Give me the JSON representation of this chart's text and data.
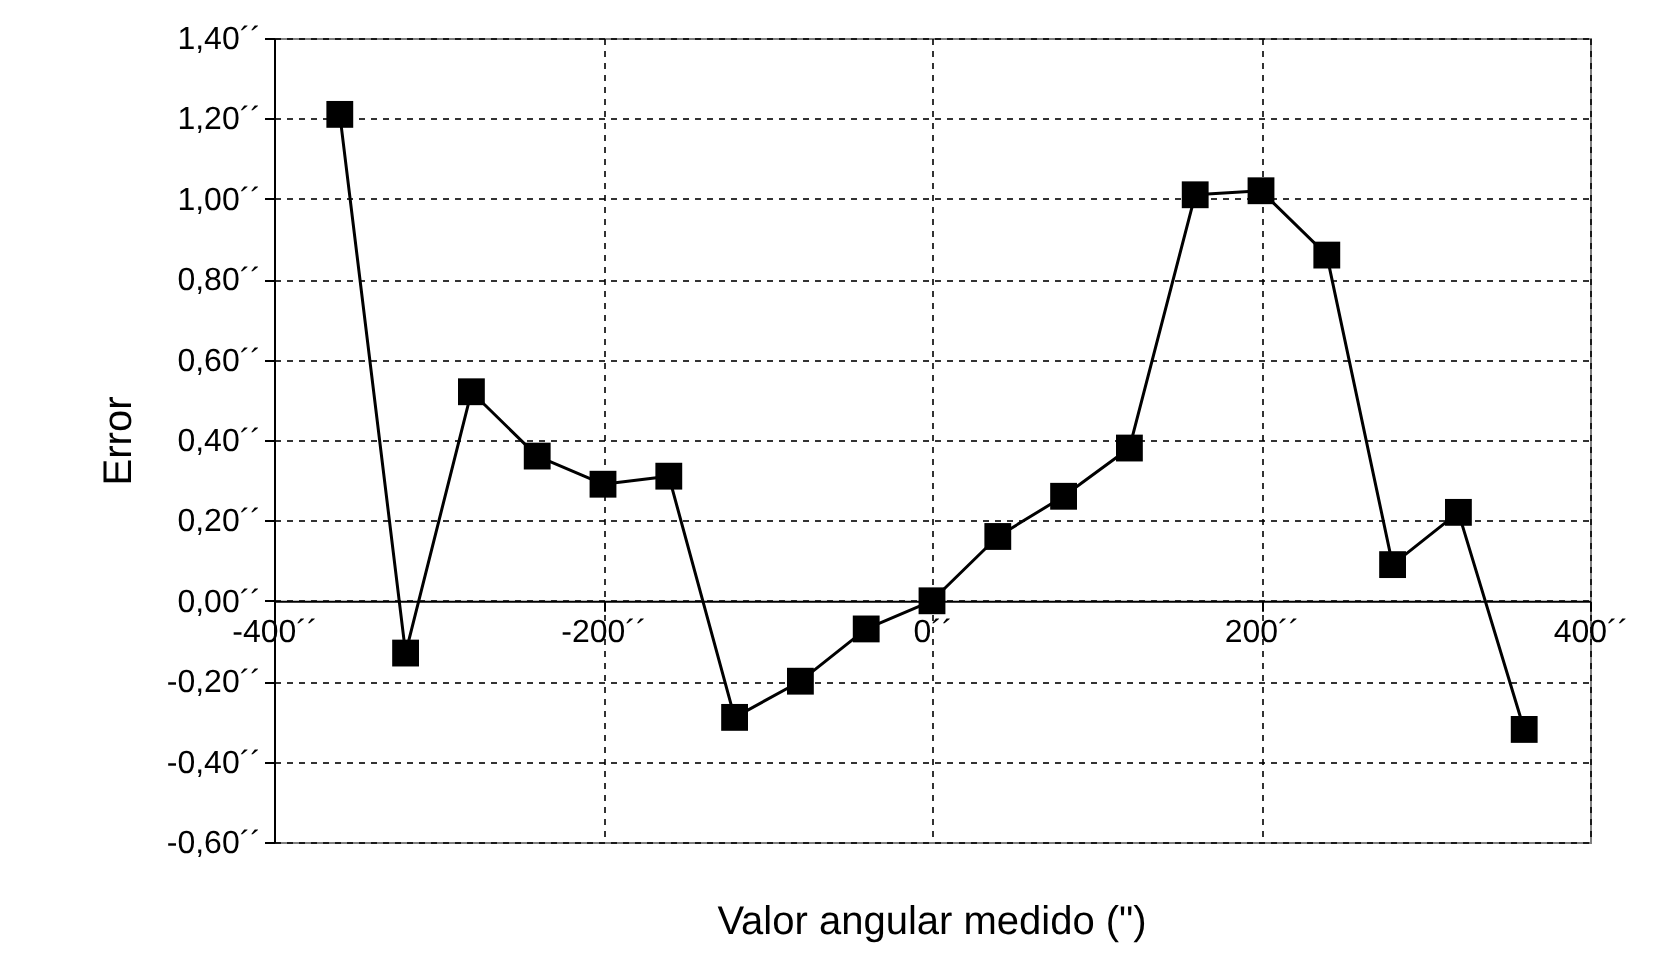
{
  "chart_data": {
    "type": "line",
    "xlabel": "Valor angular medido (\")",
    "ylabel": "Error",
    "x": [
      -360,
      -320,
      -280,
      -240,
      -200,
      -160,
      -120,
      -80,
      -40,
      0,
      40,
      80,
      120,
      160,
      200,
      240,
      280,
      320,
      360
    ],
    "series": [
      {
        "color": "#000000",
        "values": [
          1.21,
          -0.13,
          0.52,
          0.36,
          0.29,
          0.31,
          -0.29,
          -0.2,
          -0.07,
          0.0,
          0.16,
          0.26,
          0.38,
          1.01,
          1.02,
          0.86,
          0.09,
          0.22,
          -0.32
        ]
      }
    ],
    "xlim": [
      -400,
      400
    ],
    "ylim": [
      -0.6,
      1.4
    ],
    "xticks": [
      {
        "value": -400,
        "label": "-400´´"
      },
      {
        "value": -200,
        "label": "-200´´"
      },
      {
        "value": 0,
        "label": "0´´"
      },
      {
        "value": 200,
        "label": "200´´"
      },
      {
        "value": 400,
        "label": "400´´"
      }
    ],
    "yticks": [
      {
        "value": -0.6,
        "label": "-0,60´´"
      },
      {
        "value": -0.4,
        "label": "-0,40´´"
      },
      {
        "value": -0.2,
        "label": "-0,20´´"
      },
      {
        "value": 0,
        "label": "0,00´´"
      },
      {
        "value": 0.2,
        "label": "0,20´´"
      },
      {
        "value": 0.4,
        "label": "0,40´´"
      },
      {
        "value": 0.6,
        "label": "0,60´´"
      },
      {
        "value": 0.8,
        "label": "0,80´´"
      },
      {
        "value": 1.0,
        "label": "1,00´´"
      },
      {
        "value": 1.2,
        "label": "1,20´´"
      },
      {
        "value": 1.4,
        "label": "1,40´´"
      }
    ],
    "grid": true,
    "marker": "square",
    "line_style": "solid"
  }
}
